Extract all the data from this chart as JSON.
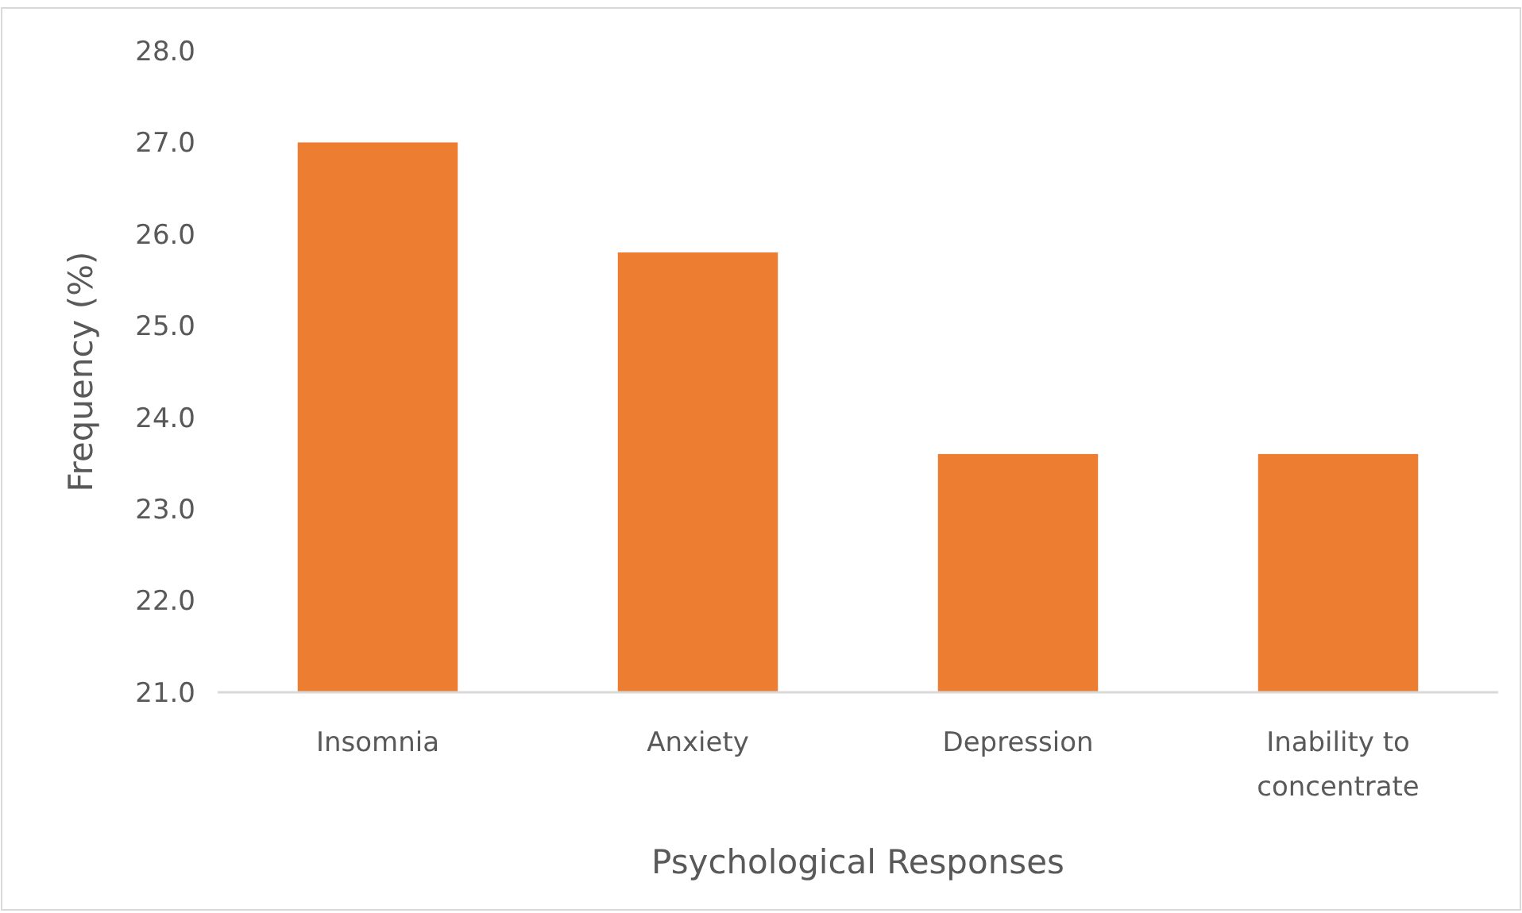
{
  "chart_data": {
    "type": "bar",
    "xlabel": "Psychological Responses",
    "ylabel": "Frequency (%)",
    "categories": [
      "Insomnia",
      "Anxiety",
      "Depression",
      "Inability to concentrate"
    ],
    "values": [
      27.0,
      25.8,
      23.6,
      23.6
    ],
    "color": "#ed7d31",
    "ylim": [
      21,
      28
    ],
    "yticks": [
      {
        "value": 21,
        "label": "21.0"
      },
      {
        "value": 22,
        "label": "22.0"
      },
      {
        "value": 23,
        "label": "23.0"
      },
      {
        "value": 24,
        "label": "24.0"
      },
      {
        "value": 25,
        "label": "25.0"
      },
      {
        "value": 26,
        "label": "26.0"
      },
      {
        "value": 27,
        "label": "27.0"
      },
      {
        "value": 28,
        "label": "28.0"
      }
    ],
    "grid": false
  }
}
